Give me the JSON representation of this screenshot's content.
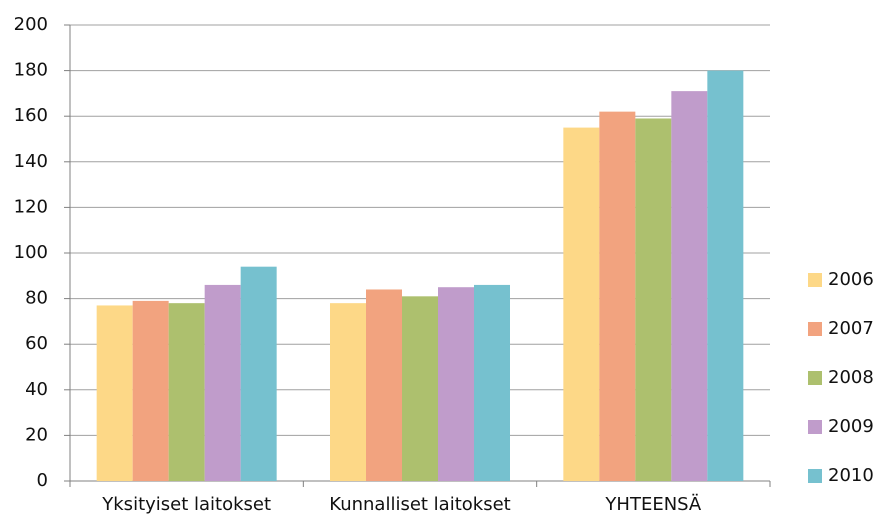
{
  "chart_data": {
    "type": "bar",
    "categories": [
      "Yksityiset laitokset",
      "Kunnalliset laitokset",
      "YHTEENSÄ"
    ],
    "series": [
      {
        "name": "2006",
        "color": "#fdd887",
        "values": [
          77,
          78,
          155
        ]
      },
      {
        "name": "2007",
        "color": "#f2a37f",
        "values": [
          79,
          84,
          162
        ]
      },
      {
        "name": "2008",
        "color": "#adc06e",
        "values": [
          78,
          81,
          159
        ]
      },
      {
        "name": "2009",
        "color": "#c09ccb",
        "values": [
          86,
          85,
          171
        ]
      },
      {
        "name": "2010",
        "color": "#76c1cf",
        "values": [
          94,
          86,
          180
        ]
      }
    ],
    "ylim": [
      0,
      200
    ],
    "yticks": [
      0,
      20,
      40,
      60,
      80,
      100,
      120,
      140,
      160,
      180,
      200
    ],
    "grid": true,
    "legend": "right"
  }
}
